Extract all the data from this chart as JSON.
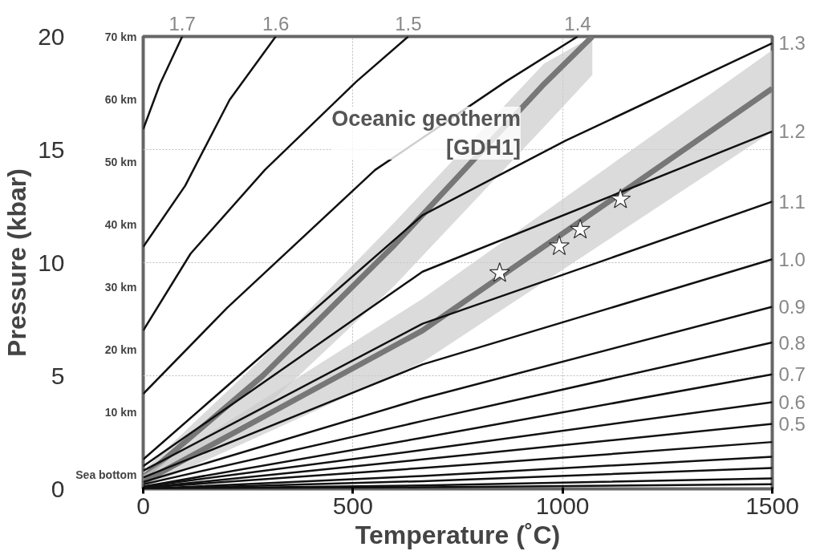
{
  "chart_data": {
    "type": "line",
    "xlabel": "Temperature (˚C)",
    "ylabel": "Pressure (kbar)",
    "xlim": [
      0,
      1500
    ],
    "xticks": [
      0,
      500,
      1000,
      1500
    ],
    "ylim": [
      0,
      20
    ],
    "yticks": [
      0,
      5,
      10,
      15,
      20
    ],
    "y2lim": [
      -2.3,
      70
    ],
    "y2ticks": [
      {
        "value": 70,
        "label": "70 km"
      },
      {
        "value": 60,
        "label": "60 km"
      },
      {
        "value": 50,
        "label": "50 km"
      },
      {
        "value": 40,
        "label": "40 km"
      },
      {
        "value": 30,
        "label": "30 km"
      },
      {
        "value": 20,
        "label": "20 km"
      },
      {
        "value": 10,
        "label": "10 km"
      },
      {
        "value": 0,
        "label": "Sea bottom"
      }
    ],
    "grid": true,
    "annotations": [
      {
        "text": "Oceanic geotherm\n[GDH1]",
        "x": 900,
        "y": 16.9
      }
    ],
    "series": [
      {
        "name": "1.7",
        "color": "#111111",
        "x": [
          0,
          40,
          93
        ],
        "values": [
          15.9,
          17.9,
          20
        ]
      },
      {
        "name": "1.6",
        "color": "#111111",
        "x": [
          0,
          100,
          206,
          316
        ],
        "values": [
          10.7,
          13.4,
          17.2,
          20
        ]
      },
      {
        "name": "1.5",
        "color": "#111111",
        "x": [
          0,
          113,
          290,
          508,
          632
        ],
        "values": [
          7.0,
          10.4,
          14.1,
          18.0,
          20
        ]
      },
      {
        "name": "1.4",
        "color": "#111111",
        "x": [
          0,
          200,
          553,
          864,
          1036
        ],
        "values": [
          4.2,
          8.0,
          14.1,
          18.0,
          20
        ]
      },
      {
        "color": "#777777",
        "x": [
          0,
          285,
          600,
          956,
          1071
        ],
        "values": [
          0.5,
          5.0,
          10.8,
          17.9,
          20
        ],
        "lower": [
          0,
          3.5,
          9.0,
          16.0,
          18.3
        ],
        "upper": [
          0.8,
          5.8,
          11.8,
          18.8,
          20
        ]
      },
      {
        "color": "#777777",
        "x": [
          0,
          666,
          1500
        ],
        "values": [
          0.3,
          7.0,
          17.7
        ],
        "lower": [
          0,
          5.6,
          15.8
        ],
        "upper": [
          0.6,
          8.4,
          19.4
        ]
      },
      {
        "name": "1.3",
        "color": "#111111",
        "x": [
          0,
          666,
          1008,
          1500
        ],
        "values": [
          1.3,
          12.1,
          15.4,
          19.7
        ]
      },
      {
        "name": "1.2",
        "color": "#111111",
        "x": [
          0,
          666,
          1500
        ],
        "values": [
          1.0,
          9.6,
          15.8
        ]
      },
      {
        "name": "1.1",
        "color": "#111111",
        "x": [
          0,
          666,
          1500
        ],
        "values": [
          0.8,
          7.3,
          12.7
        ]
      },
      {
        "name": "1.0",
        "color": "#111111",
        "x": [
          0,
          666,
          1500
        ],
        "values": [
          0.5,
          5.5,
          10.15
        ]
      },
      {
        "name": "0.9",
        "color": "#111111",
        "x": [
          0,
          666,
          1500
        ],
        "values": [
          0.3,
          4.0,
          8.05
        ]
      },
      {
        "name": "0.8",
        "color": "#111111",
        "x": [
          0,
          666,
          1500
        ],
        "values": [
          0.2,
          3.0,
          6.47
        ]
      },
      {
        "name": "0.7",
        "color": "#111111",
        "x": [
          0,
          666,
          1500
        ],
        "values": [
          0.1,
          2.26,
          5.06
        ]
      },
      {
        "name": "0.6",
        "color": "#111111",
        "x": [
          0,
          666,
          1500
        ],
        "values": [
          0.1,
          1.72,
          3.83
        ]
      },
      {
        "name": "0.5",
        "color": "#111111",
        "x": [
          0,
          666,
          1500
        ],
        "values": [
          0.05,
          1.3,
          2.87
        ]
      },
      {
        "color": "#111111",
        "x": [
          0,
          666,
          1500
        ],
        "values": [
          0.05,
          0.92,
          2.07
        ]
      },
      {
        "color": "#111111",
        "x": [
          0,
          666,
          1500
        ],
        "values": [
          0,
          0.57,
          1.42
        ]
      },
      {
        "color": "#111111",
        "x": [
          0,
          666,
          1500
        ],
        "values": [
          0,
          0.34,
          0.92
        ]
      },
      {
        "color": "#111111",
        "x": [
          0,
          666,
          1500
        ],
        "values": [
          0,
          0.15,
          0.46
        ]
      },
      {
        "color": "#111111",
        "x": [
          0,
          666,
          1500
        ],
        "values": [
          0,
          0.07,
          0.2
        ]
      },
      {
        "type": "scatter",
        "marker": "star",
        "color": "#ffffff",
        "x": [
          850,
          992,
          1042,
          1138
        ],
        "values": [
          9.54,
          10.73,
          11.46,
          12.8
        ]
      }
    ]
  }
}
